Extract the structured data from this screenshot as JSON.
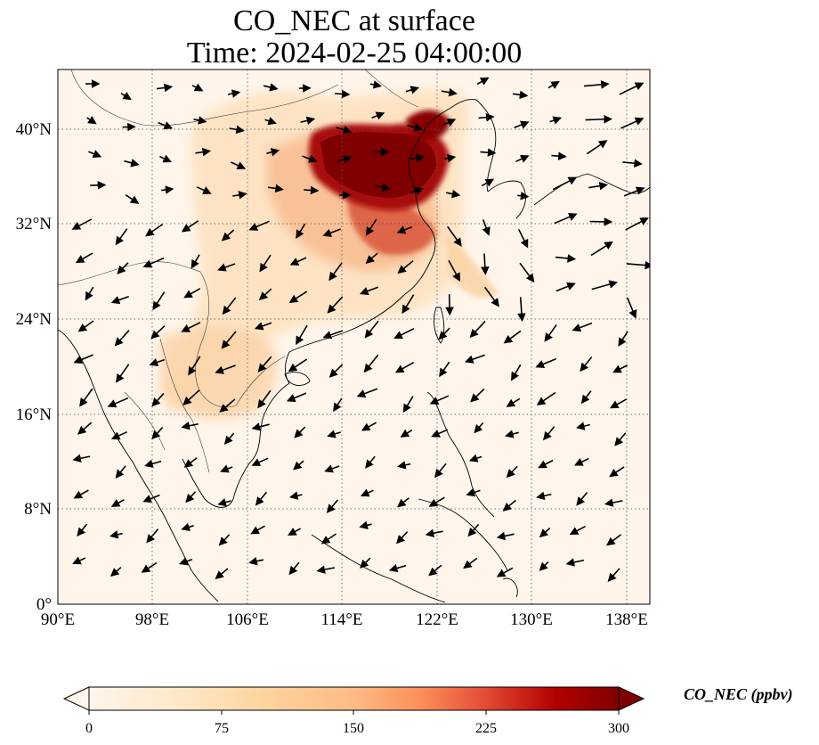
{
  "title": {
    "line1": "CO_NEC at surface",
    "line2": "Time: 2024-02-25 04:00:00"
  },
  "map": {
    "variable": "CO_NEC",
    "level": "surface",
    "lon_range": [
      90,
      140
    ],
    "lat_range": [
      0,
      45
    ],
    "lon_ticks": [
      "90°E",
      "98°E",
      "106°E",
      "114°E",
      "122°E",
      "130°E",
      "138°E"
    ],
    "lat_ticks": [
      "0°",
      "8°N",
      "16°N",
      "24°N",
      "32°N",
      "40°N"
    ],
    "gridlines": "dotted",
    "background_color": "#fff5eb",
    "features": [
      "coastlines",
      "country borders",
      "wind vectors"
    ]
  },
  "colorbar": {
    "label": "CO_NEC (ppbv)",
    "ticks": [
      "0",
      "75",
      "150",
      "225",
      "300"
    ],
    "range": [
      0,
      300
    ],
    "extend": "both",
    "colormap": "OrRd",
    "colors": [
      "#fff5eb",
      "#fdd49e",
      "#fdbb84",
      "#fc8d59",
      "#e34a33",
      "#b30000",
      "#7f0000"
    ]
  },
  "plumes": [
    {
      "region": "North China Plain",
      "level": "very high (>300 ppbv)"
    },
    {
      "region": "Yangtze River Delta",
      "level": "high"
    },
    {
      "region": "Indochina / South China",
      "level": "moderate"
    }
  ]
}
